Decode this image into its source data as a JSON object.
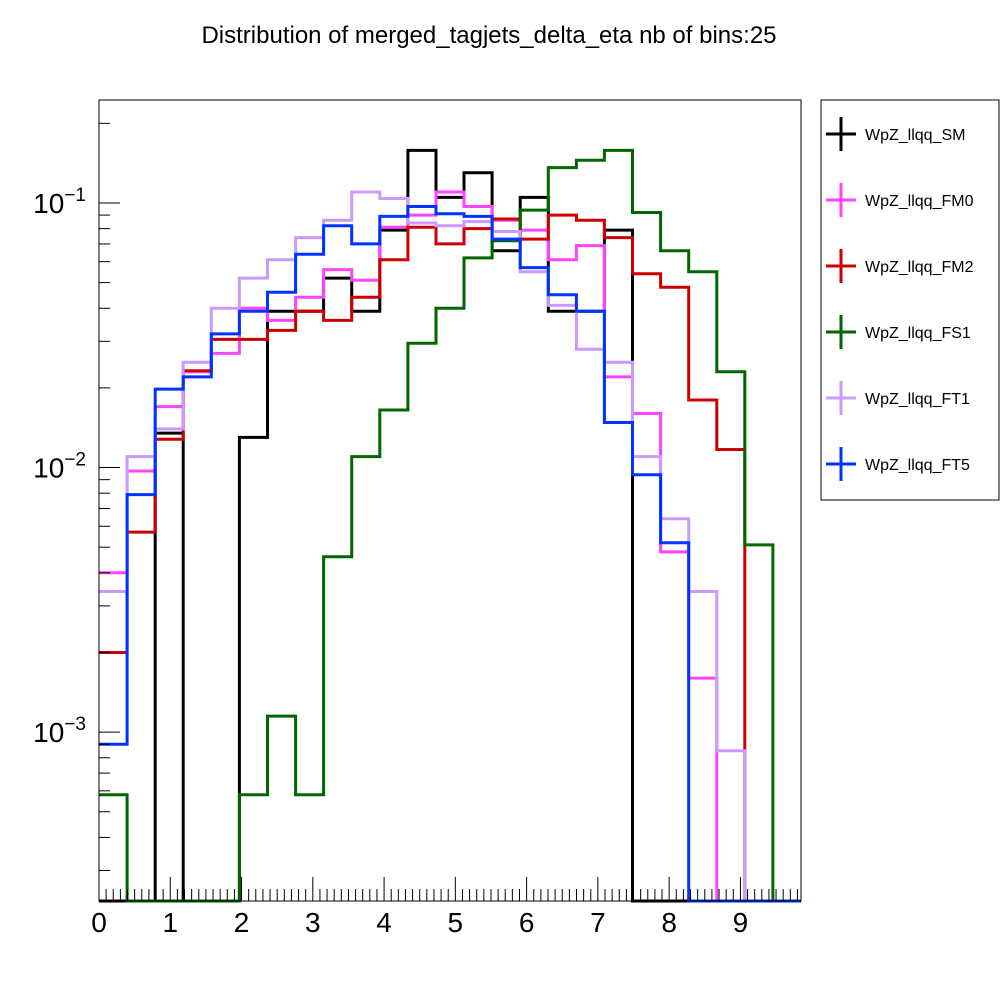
{
  "chart_data": {
    "type": "line",
    "step": true,
    "title": "Distribution of merged_tagjets_delta_eta nb of bins:25",
    "xlabel": "",
    "ylabel": "",
    "yscale": "log",
    "xlim": [
      0,
      9.85
    ],
    "ylim": [
      0.00023,
      0.245
    ],
    "x_ticks": [
      "0",
      "1",
      "2",
      "3",
      "4",
      "5",
      "6",
      "7",
      "8",
      "9"
    ],
    "y_ticks": [
      {
        "base": "10",
        "exp": "−1",
        "value": 0.1
      },
      {
        "base": "10",
        "exp": "−2",
        "value": 0.01
      },
      {
        "base": "10",
        "exp": "−3",
        "value": 0.001
      }
    ],
    "grid": false,
    "legend_position": "right",
    "bin_edges": [
      0,
      0.394,
      0.788,
      1.182,
      1.576,
      1.97,
      2.364,
      2.758,
      3.152,
      3.546,
      3.94,
      4.334,
      4.728,
      5.122,
      5.516,
      5.91,
      6.304,
      6.698,
      7.092,
      7.486,
      7.88,
      8.274,
      8.668,
      9.062,
      9.456,
      9.85
    ],
    "series": [
      {
        "name": "WpZ_llqq_SM",
        "color": "#000000",
        "values": [
          0,
          0,
          0.0135,
          0,
          0,
          0.013,
          0.039,
          0.039,
          0.052,
          0.039,
          0.079,
          0.158,
          0.105,
          0.13,
          0.066,
          0.105,
          0.039,
          0.039,
          0.079,
          0,
          0,
          0,
          0,
          0,
          0
        ]
      },
      {
        "name": "WpZ_llqq_FM0",
        "color": "#ff44ff",
        "values": [
          0.004,
          0.0097,
          0.017,
          0.023,
          0.027,
          0.04,
          0.036,
          0.044,
          0.056,
          0.051,
          0.081,
          0.09,
          0.11,
          0.097,
          0.086,
          0.079,
          0.061,
          0.069,
          0.022,
          0.016,
          0.0048,
          0.0016,
          0,
          0,
          0
        ]
      },
      {
        "name": "WpZ_llqq_FM2",
        "color": "#cc0000",
        "values": [
          0.002,
          0.0057,
          0.0128,
          0.0232,
          0.0305,
          0.0305,
          0.033,
          0.039,
          0.036,
          0.044,
          0.061,
          0.081,
          0.07,
          0.08,
          0.087,
          0.073,
          0.09,
          0.086,
          0.074,
          0.054,
          0.048,
          0.018,
          0.0117,
          0,
          0
        ]
      },
      {
        "name": "WpZ_llqq_FS1",
        "color": "#006600",
        "values": [
          0.00058,
          0,
          0,
          0,
          0,
          0.00058,
          0.00115,
          0.00058,
          0.0046,
          0.011,
          0.0165,
          0.0295,
          0.04,
          0.062,
          0.072,
          0.094,
          0.136,
          0.145,
          0.158,
          0.092,
          0.066,
          0.055,
          0.023,
          0.0051,
          0
        ]
      },
      {
        "name": "WpZ_llqq_FT1",
        "color": "#cc99ff",
        "values": [
          0.0034,
          0.011,
          0.014,
          0.025,
          0.04,
          0.052,
          0.061,
          0.074,
          0.086,
          0.11,
          0.104,
          0.084,
          0.082,
          0.085,
          0.078,
          0.055,
          0.041,
          0.028,
          0.025,
          0.011,
          0.0064,
          0.0034,
          0.00085,
          0,
          0
        ]
      },
      {
        "name": "WpZ_llqq_FT5",
        "color": "#0033ff",
        "values": [
          0.0009,
          0.0079,
          0.0198,
          0.022,
          0.032,
          0.039,
          0.046,
          0.064,
          0.082,
          0.07,
          0.089,
          0.097,
          0.091,
          0.089,
          0.073,
          0.057,
          0.045,
          0.039,
          0.0148,
          0.0094,
          0.0052,
          0,
          0,
          0,
          0
        ]
      }
    ]
  }
}
